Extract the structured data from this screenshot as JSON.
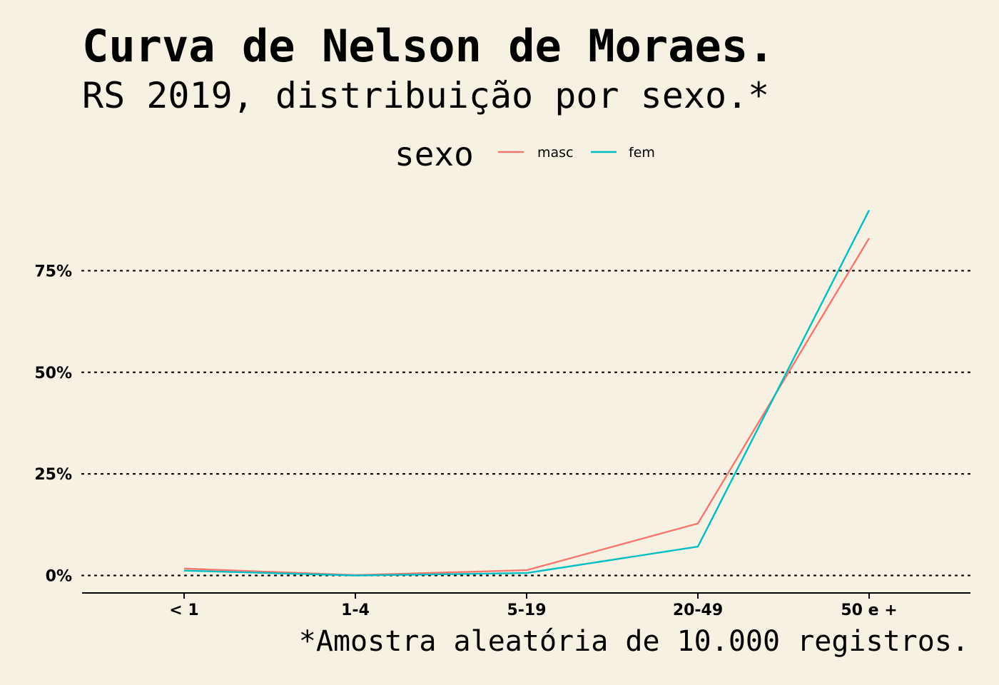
{
  "chart_data": {
    "type": "line",
    "title": "Curva de Nelson de Moraes.",
    "subtitle": "RS 2019, distribuição por sexo.*",
    "caption": "*Amostra aleatória de 10.000 registros.",
    "legend": {
      "title": "sexo",
      "position": "top"
    },
    "categories": [
      "< 1",
      "1-4",
      "5-19",
      "20-49",
      "50 e +"
    ],
    "series": [
      {
        "name": "masc",
        "color": "#f8766d",
        "values": [
          1.7,
          0.1,
          1.3,
          12.8,
          83.0
        ]
      },
      {
        "name": "fem",
        "color": "#00bfc4",
        "values": [
          1.2,
          0.0,
          0.6,
          7.1,
          89.9
        ]
      }
    ],
    "y_ticks": [
      {
        "value": 0,
        "label": "0%"
      },
      {
        "value": 25,
        "label": "25%"
      },
      {
        "value": 50,
        "label": "50%"
      },
      {
        "value": 75,
        "label": "75%"
      }
    ],
    "ylim": [
      -4.3,
      100
    ],
    "grid": "horizontal dotted"
  }
}
